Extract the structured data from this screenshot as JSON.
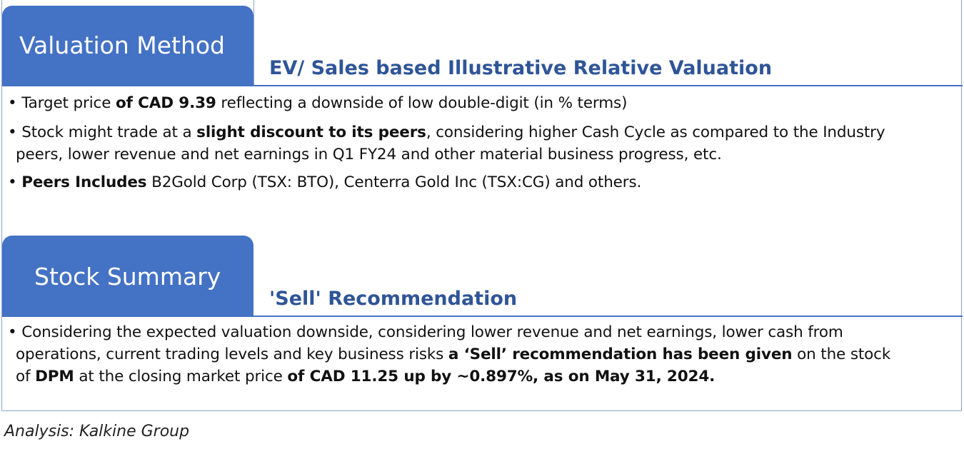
{
  "valuation": {
    "tab_label": "Valuation Method",
    "subheading": "EV/ Sales based Illustrative Relative Valuation",
    "bullet1": {
      "a": "• Target price ",
      "b": "of CAD 9.39",
      "c": " reflecting a downside of low double-digit (in % terms)"
    },
    "bullet2": {
      "a": "• Stock might trade at a ",
      "b": "slight discount to its peers",
      "c": ", considering  higher Cash Cycle as compared to the Industry",
      "d": "peers, lower revenue and net earnings in Q1 FY24 and other material business progress, etc."
    },
    "bullet3": {
      "a": "• ",
      "b": "Peers Includes",
      "c": "  B2Gold Corp (TSX: BTO), Centerra Gold Inc (TSX:CG) and others."
    }
  },
  "summary": {
    "tab_label": "Stock Summary",
    "subheading": "'Sell' Recommendation",
    "bullet1": {
      "line1": "• Considering the expected valuation downside, considering  lower revenue and net earnings, lower cash from",
      "line2a": "operations, current trading levels and key business risks ",
      "line2b": "a ‘Sell’ recommendation has been given",
      "line2c": " on the stock",
      "line3a": "of  ",
      "line3b": "DPM",
      "line3c": "  at the closing market price ",
      "line3d": "of CAD 11.25 up by ~0.897%, as on May 31, 2024."
    }
  },
  "source": "Analysis: Kalkine Group",
  "colors": {
    "tab_bg": "#4472c4",
    "subheading": "#2f5597",
    "border": "#8ea3c8"
  }
}
